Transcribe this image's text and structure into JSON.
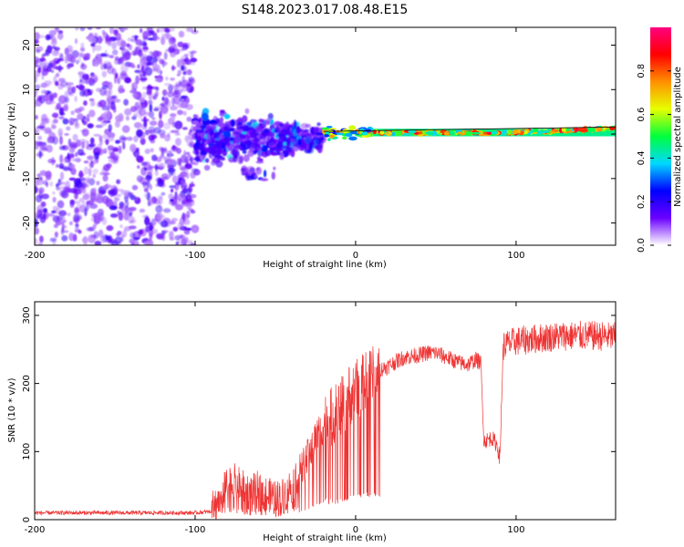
{
  "figure": {
    "title": "S148.2023.017.08.48.E15"
  },
  "chart_data": [
    {
      "type": "heatmap",
      "title": "S148.2023.017.08.48.E15",
      "xlabel": "Height of straight line (km)",
      "ylabel": "Frequency (Hz)",
      "xlim": [
        -200,
        162
      ],
      "ylim": [
        -25,
        24
      ],
      "xticks": [
        -200,
        -100,
        0,
        100
      ],
      "yticks": [
        -20,
        -10,
        0,
        10,
        20
      ],
      "grid": false,
      "colorbar": {
        "label": "Normalized spectral amplitude",
        "range": [
          0,
          1
        ],
        "ticks": [
          0.0,
          0.2,
          0.4,
          0.6,
          0.8
        ],
        "colormap": "rainbow",
        "colors": [
          "#ffffff",
          "#6a00ff",
          "#0000ff",
          "#00d8ff",
          "#00ff3c",
          "#e6ff00",
          "#ff9000",
          "#ff0000",
          "#ff0080"
        ]
      },
      "regions": [
        {
          "description": "noise",
          "x": [
            -200,
            -100
          ],
          "y": [
            -25,
            24
          ],
          "amplitude": 0.1
        },
        {
          "description": "scattered signal",
          "x": [
            -100,
            -20
          ],
          "y": [
            -12,
            6
          ],
          "amplitude": 0.3
        },
        {
          "description": "carrier",
          "x": [
            -20,
            162
          ],
          "y": [
            -1,
            2
          ],
          "amplitude": 0.9
        }
      ]
    },
    {
      "type": "line",
      "xlabel": "Height of straight line (km)",
      "ylabel": "SNR (10 * v/v)",
      "xlim": [
        -200,
        162
      ],
      "ylim": [
        0,
        320
      ],
      "xticks": [
        -200,
        -100,
        0,
        100
      ],
      "yticks": [
        0,
        100,
        200,
        300
      ],
      "grid": false,
      "line_color": "#ee3333",
      "series": [
        {
          "x": [
            -200,
            -150,
            -100,
            -90,
            -85,
            -80,
            -75,
            -70,
            -65,
            -60,
            -55,
            -50,
            -45,
            -40,
            -35,
            -30,
            -25,
            -20,
            -15,
            -10,
            -5,
            0,
            5,
            10,
            15,
            20,
            25,
            30,
            35,
            40,
            45,
            50,
            55,
            60,
            65,
            70,
            75,
            78,
            80,
            85,
            88,
            90,
            91,
            92,
            95,
            100,
            110,
            120,
            130,
            140,
            150,
            162
          ],
          "values": [
            10,
            10,
            10,
            12,
            30,
            50,
            55,
            45,
            40,
            45,
            35,
            30,
            35,
            50,
            70,
            90,
            120,
            140,
            150,
            160,
            180,
            190,
            200,
            210,
            220,
            225,
            232,
            238,
            240,
            242,
            245,
            245,
            240,
            235,
            230,
            228,
            235,
            230,
            115,
            120,
            110,
            90,
            180,
            255,
            258,
            262,
            265,
            268,
            270,
            270,
            270,
            268
          ]
        }
      ]
    }
  ]
}
